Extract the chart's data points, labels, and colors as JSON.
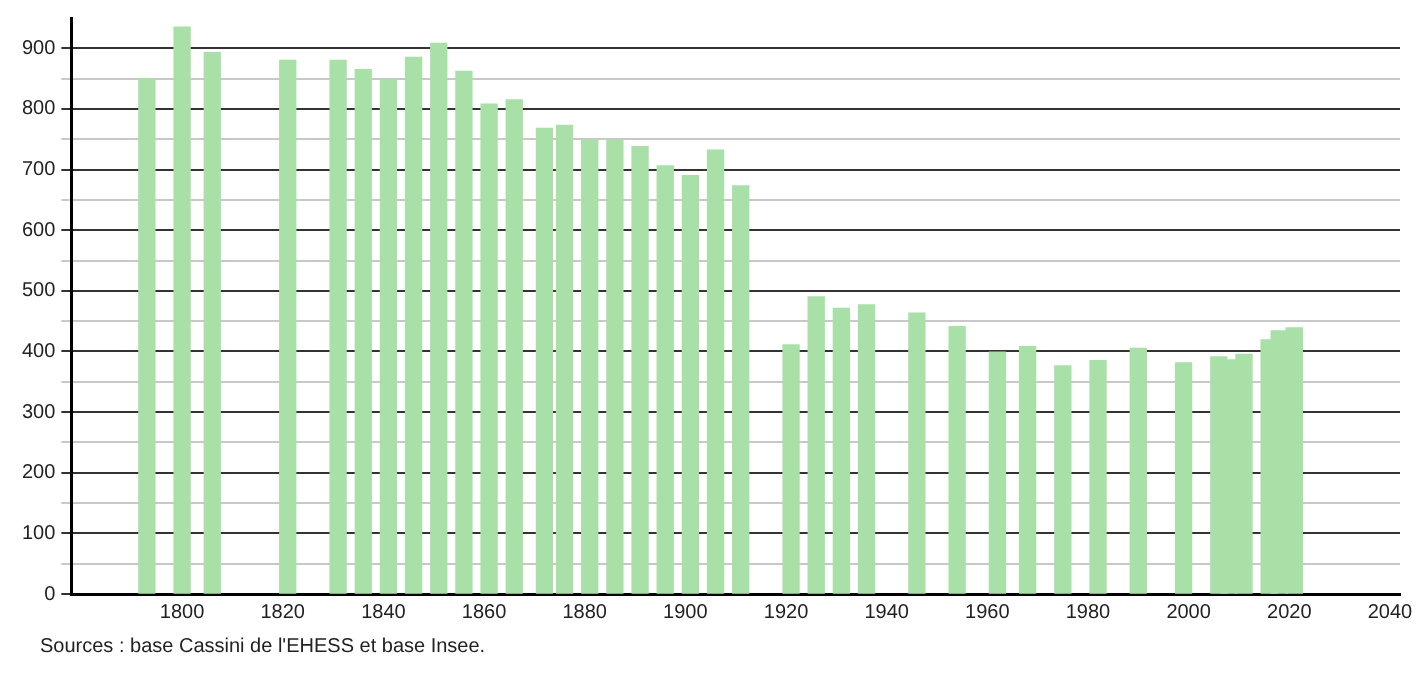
{
  "chart_data": {
    "type": "bar",
    "x": [
      1793,
      1800,
      1806,
      1821,
      1831,
      1836,
      1841,
      1846,
      1851,
      1856,
      1861,
      1866,
      1872,
      1876,
      1881,
      1886,
      1891,
      1896,
      1901,
      1906,
      1911,
      1921,
      1926,
      1931,
      1936,
      1946,
      1954,
      1962,
      1968,
      1975,
      1982,
      1990,
      1999,
      2006,
      2008,
      2011,
      2016,
      2018,
      2021
    ],
    "values": [
      850,
      935,
      893,
      880,
      880,
      865,
      848,
      885,
      908,
      862,
      808,
      815,
      768,
      773,
      748,
      748,
      738,
      706,
      690,
      732,
      673,
      411,
      490,
      471,
      477,
      463,
      441,
      399,
      408,
      376,
      385,
      405,
      381,
      391,
      386,
      395,
      419,
      434,
      439
    ],
    "color": "#a8e0a8",
    "xlim": [
      1778,
      2042
    ],
    "xticks": [
      1800,
      1820,
      1840,
      1860,
      1880,
      1900,
      1920,
      1940,
      1960,
      1980,
      2000,
      2020,
      2040
    ],
    "ylim": [
      0,
      950
    ],
    "yticks": [
      0,
      {
        "value": 50,
        "label": null
      },
      100,
      {
        "value": 150,
        "label": null
      },
      200,
      {
        "value": 250,
        "label": null
      },
      300,
      {
        "value": 350,
        "label": null
      },
      400,
      {
        "value": 450,
        "label": null
      },
      500,
      {
        "value": 550,
        "label": null
      },
      600,
      {
        "value": 650,
        "label": null
      },
      700,
      {
        "value": 750,
        "label": null
      },
      800,
      {
        "value": 850,
        "label": null
      },
      900
    ],
    "grid": "y",
    "legend": false,
    "annotations": [
      "Sources : base Cassini de l'EHESS et base Insee."
    ]
  }
}
